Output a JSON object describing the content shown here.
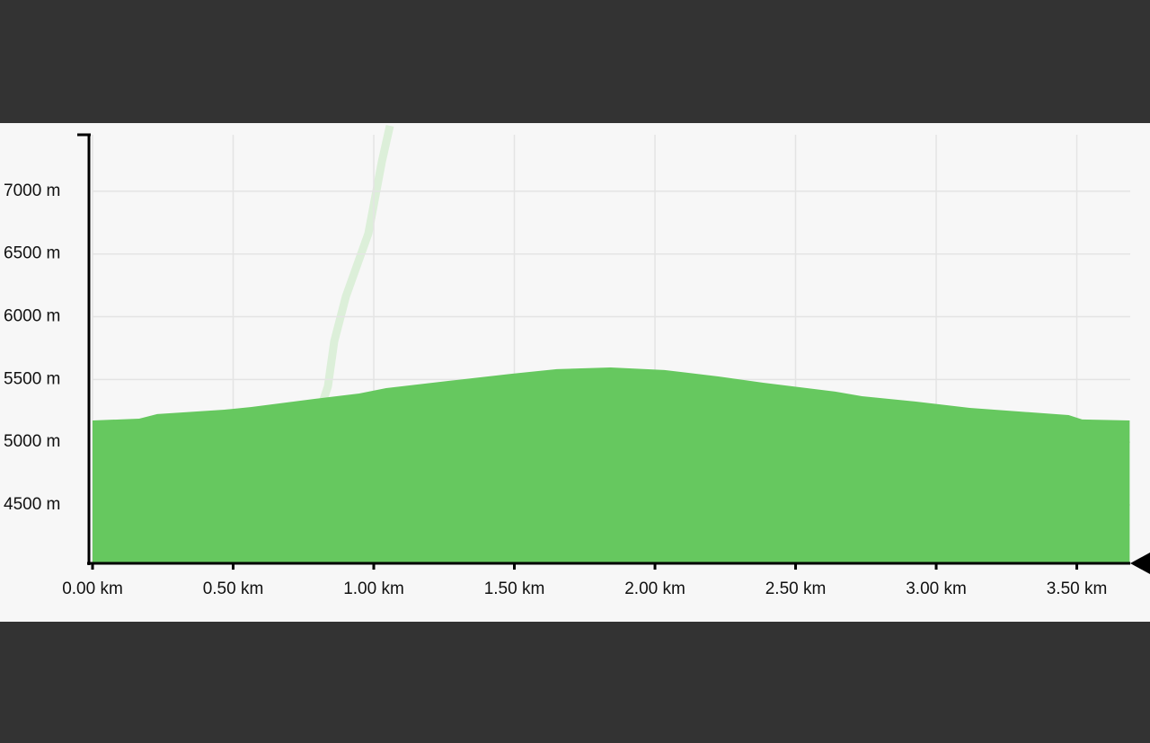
{
  "chart_data": {
    "type": "area",
    "x": [
      0,
      0.166,
      0.23,
      0.469,
      0.565,
      0.789,
      0.948,
      1.044,
      1.268,
      1.491,
      1.651,
      1.842,
      2.034,
      2.225,
      2.385,
      2.641,
      2.736,
      2.928,
      3.119,
      3.471,
      3.519,
      3.688
    ],
    "values": [
      5173,
      5188,
      5224,
      5259,
      5281,
      5345,
      5388,
      5431,
      5489,
      5546,
      5582,
      5596,
      5575,
      5524,
      5474,
      5403,
      5367,
      5324,
      5274,
      5216,
      5181,
      5173
    ],
    "color": "#66c85f",
    "xlim": [
      0,
      3.69
    ],
    "ylim": [
      4035,
      7450
    ],
    "xticks": [
      {
        "value": 0,
        "label": "0.00 km"
      },
      {
        "value": 0.5,
        "label": "0.50 km"
      },
      {
        "value": 1,
        "label": "1.00 km"
      },
      {
        "value": 1.5,
        "label": "1.50 km"
      },
      {
        "value": 2,
        "label": "2.00 km"
      },
      {
        "value": 2.5,
        "label": "2.50 km"
      },
      {
        "value": 3,
        "label": "3.00 km"
      },
      {
        "value": 3.5,
        "label": "3.50 km"
      }
    ],
    "yticks": [
      {
        "value": 4500,
        "label": "4500 m"
      },
      {
        "value": 5000,
        "label": "5000 m"
      },
      {
        "value": 5500,
        "label": "5500 m"
      },
      {
        "value": 6000,
        "label": "6000 m"
      },
      {
        "value": 6500,
        "label": "6500 m"
      },
      {
        "value": 7000,
        "label": "7000 m"
      }
    ],
    "grid": true
  }
}
